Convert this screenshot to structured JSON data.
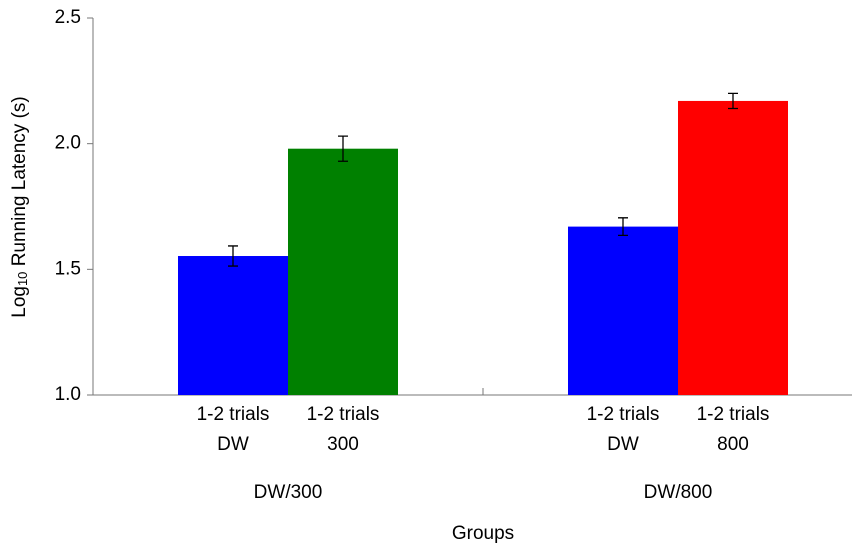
{
  "chart_data": {
    "type": "bar",
    "y_label": [
      "Log",
      "10",
      " Running Latency (s)"
    ],
    "x_label": "Groups",
    "ylim": [
      1,
      2.5
    ],
    "yticks": [
      {
        "value": 1,
        "label": "1.0"
      },
      1.5,
      {
        "value": 2,
        "label": "2.0"
      },
      2.5
    ],
    "groups": [
      {
        "name": "DW/300",
        "bars": [
          {
            "label": [
              "1-2 trials",
              "DW"
            ],
            "color": "#0000ff",
            "value": 1.553,
            "error": 0.04
          },
          {
            "label": [
              "1-2 trials",
              "300"
            ],
            "color": "#008000",
            "value": 1.98,
            "error": 0.05
          }
        ]
      },
      {
        "name": "DW/800",
        "bars": [
          {
            "label": [
              "1-2 trials",
              "DW"
            ],
            "color": "#0000ff",
            "value": 1.67,
            "error": 0.035
          },
          {
            "label": [
              "1-2 trials",
              "800"
            ],
            "color": "#ff0000",
            "value": 2.17,
            "error": 0.03
          }
        ]
      }
    ]
  }
}
